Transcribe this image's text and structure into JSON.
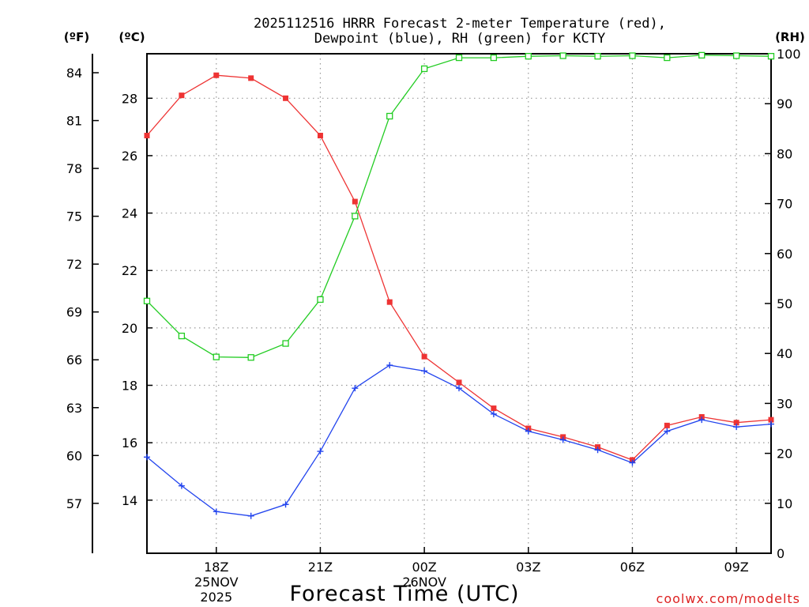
{
  "chart_data": {
    "type": "line",
    "title_line1": "2025112516 HRRR Forecast 2-meter Temperature (red),",
    "title_line2": "Dewpoint (blue), RH (green) for KCTY",
    "xlabel": "Forecast Time (UTC)",
    "watermark": "coolwx.com/modelts",
    "units": {
      "fahrenheit": "(ºF)",
      "celsius": "(ºC)",
      "rh": "(RH)"
    },
    "celsius_axis": {
      "ylim": [
        12.15,
        29.55
      ],
      "ticks": [
        "14",
        "16",
        "18",
        "20",
        "22",
        "24",
        "26",
        "28"
      ]
    },
    "fahrenheit_axis": {
      "ticks": [
        "57",
        "60",
        "63",
        "66",
        "69",
        "72",
        "75",
        "78",
        "81",
        "84"
      ]
    },
    "rh_axis": {
      "ylim": [
        0,
        100
      ],
      "ticks": [
        "0",
        "10",
        "20",
        "30",
        "40",
        "50",
        "60",
        "70",
        "80",
        "90",
        "100"
      ]
    },
    "x_hours": [
      0,
      1,
      2,
      3,
      4,
      5,
      6,
      7,
      8,
      9,
      10,
      11,
      12,
      13,
      14,
      15,
      16,
      17,
      18
    ],
    "x_ticks": [
      {
        "hour": 2,
        "label": "18Z",
        "sub1": "25NOV",
        "sub2": "2025"
      },
      {
        "hour": 5,
        "label": "21Z",
        "sub1": "",
        "sub2": ""
      },
      {
        "hour": 8,
        "label": "00Z",
        "sub1": "26NOV",
        "sub2": ""
      },
      {
        "hour": 11,
        "label": "03Z",
        "sub1": "",
        "sub2": ""
      },
      {
        "hour": 14,
        "label": "06Z",
        "sub1": "",
        "sub2": ""
      },
      {
        "hour": 17,
        "label": "09Z",
        "sub1": "",
        "sub2": ""
      }
    ],
    "series": [
      {
        "name": "Temperature",
        "axis": "celsius",
        "color": "#ee3333",
        "marker": "filled-square",
        "values": [
          26.7,
          28.1,
          28.8,
          28.7,
          28.0,
          26.7,
          24.4,
          20.9,
          19.0,
          18.1,
          17.2,
          16.5,
          16.2,
          15.85,
          15.4,
          16.6,
          16.9,
          16.7,
          16.8
        ]
      },
      {
        "name": "Dewpoint",
        "axis": "celsius",
        "color": "#2244ee",
        "marker": "plus",
        "values": [
          15.5,
          14.5,
          13.6,
          13.45,
          13.85,
          15.7,
          17.9,
          18.7,
          18.5,
          17.9,
          17.0,
          16.4,
          16.1,
          15.75,
          15.3,
          16.4,
          16.8,
          16.55,
          16.65
        ]
      },
      {
        "name": "RH",
        "axis": "rh",
        "color": "#22cc22",
        "marker": "open-square",
        "values": [
          50.5,
          43.5,
          39.3,
          39.2,
          42.0,
          50.8,
          67.5,
          87.5,
          97.0,
          99.2,
          99.2,
          99.5,
          99.6,
          99.5,
          99.6,
          99.2,
          99.7,
          99.6,
          99.5
        ]
      }
    ]
  }
}
